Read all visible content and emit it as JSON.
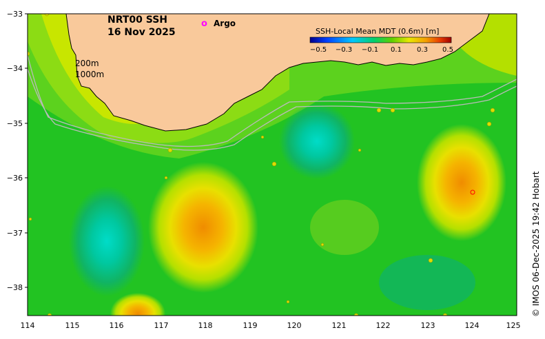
{
  "map": {
    "title_line1": "NRT00 SSH",
    "title_line2": "16 Nov 2025",
    "legend_marker": "o",
    "legend_label": "Argo",
    "contour_label_1": "200m",
    "contour_label_2": "1000m",
    "credit": "© IMOS 06-Dec-2025 19:42 Hobart",
    "colorbar_title": "SSH-Local Mean MDT (0.6m) [m]",
    "colorbar_ticks": [
      "−0.5",
      "−0.3",
      "−0.1",
      "0.1",
      "0.3",
      "0.5"
    ],
    "y_ticks": [
      "−33",
      "−34",
      "−35",
      "−36",
      "−37",
      "−38"
    ],
    "x_ticks": [
      "114",
      "115",
      "116",
      "117",
      "118",
      "119",
      "120",
      "121",
      "122",
      "123",
      "124",
      "125"
    ],
    "colors": {
      "land": "#f9c99b",
      "ocean_base": "#22c322",
      "argo": "#ff00ff"
    }
  }
}
